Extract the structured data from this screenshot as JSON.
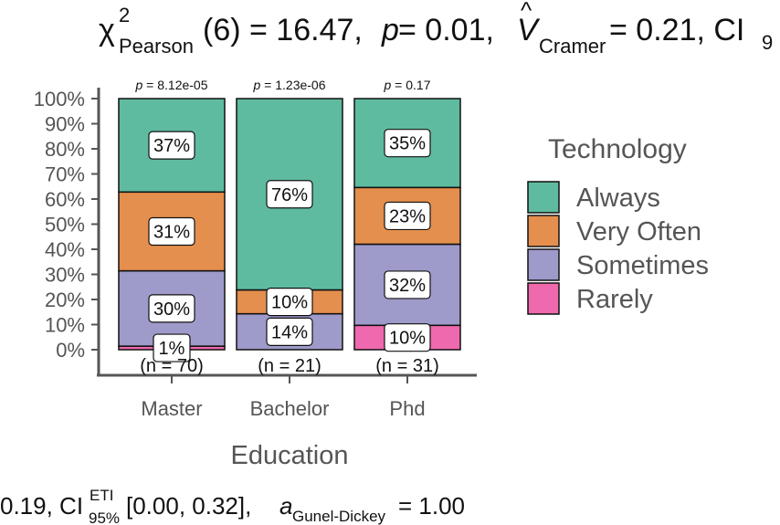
{
  "title": {
    "chi": "χ",
    "chi_sup": "2",
    "chi_sub": "Pearson",
    "stat": "(6) = 16.47, ",
    "p_sym": "p",
    "p_val": " = 0.01, ",
    "v_sym": "V",
    "v_hat": "^",
    "v_sub": "Cramer",
    "v_val": " = 0.21, CI",
    "ci_sub": "9"
  },
  "caption": {
    "lead": "0.19, CI",
    "ci_sup": "ETI",
    "ci_sub": "95%",
    "range": " [0.00, 0.32], ",
    "a_sym": "a",
    "a_sub": "Gunel-Dickey",
    "a_val": " = 1.00"
  },
  "chart_data": {
    "type": "bar",
    "stacked": true,
    "orientation": "vertical",
    "xlabel": "Education",
    "ylabel": "",
    "ylim": [
      0,
      100
    ],
    "y_ticks": [
      "0%",
      "10%",
      "20%",
      "30%",
      "40%",
      "50%",
      "60%",
      "70%",
      "80%",
      "90%",
      "100%"
    ],
    "categories": [
      "Master",
      "Bachelor",
      "Phd"
    ],
    "category_p": [
      "p = 8.12e-05",
      "p = 1.23e-06",
      "p = 0.17"
    ],
    "category_n": [
      "(n = 70)",
      "(n = 21)",
      "(n = 31)"
    ],
    "legend_title": "Technology",
    "legend_position": "right",
    "series": [
      {
        "name": "Rarely",
        "color": "#E7298A",
        "values": [
          1.4,
          0,
          9.7
        ],
        "labels": [
          "1%",
          "",
          "10%"
        ]
      },
      {
        "name": "Sometimes",
        "color": "#7570B3",
        "values": [
          30.0,
          14.3,
          32.3
        ],
        "labels": [
          "30%",
          "14%",
          "32%"
        ]
      },
      {
        "name": "Very Often",
        "color": "#D95F02",
        "values": [
          31.4,
          9.5,
          22.6
        ],
        "labels": [
          "31%",
          "10%",
          "23%"
        ]
      },
      {
        "name": "Always",
        "color": "#1B9E77",
        "values": [
          37.2,
          76.2,
          35.4
        ],
        "labels": [
          "37%",
          "76%",
          "35%"
        ]
      }
    ],
    "legend_order": [
      "Always",
      "Very Often",
      "Sometimes",
      "Rarely"
    ],
    "grid": false
  }
}
